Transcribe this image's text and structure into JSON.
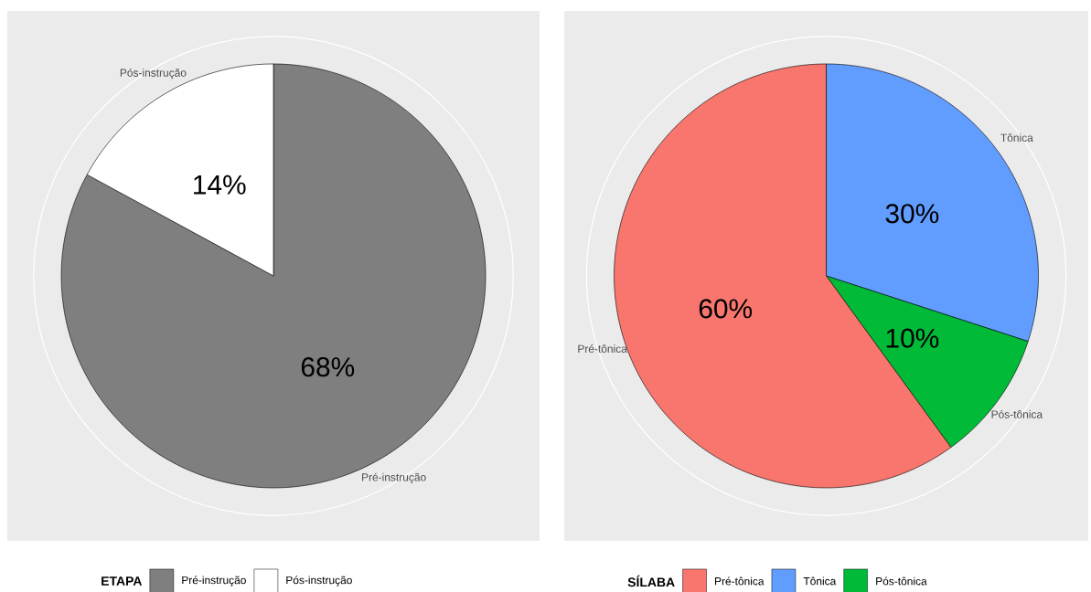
{
  "chart_data": [
    {
      "type": "pie",
      "categories": [
        "Pré-instrução",
        "Pós-instrução"
      ],
      "values": [
        68,
        14
      ],
      "colors": [
        "#7f7f7f",
        "#ffffff"
      ],
      "value_labels": [
        "68%",
        "14%"
      ],
      "legend_title": "ETAPA",
      "legend": "bottom",
      "grid": true
    },
    {
      "type": "pie",
      "categories": [
        "Tônica",
        "Pós-tônica",
        "Pré-tônica"
      ],
      "values": [
        30,
        10,
        60
      ],
      "colors": [
        "#619cff",
        "#00ba38",
        "#f8766d"
      ],
      "value_labels": [
        "30%",
        "10%",
        "60%"
      ],
      "legend_title": "SÍLABA",
      "legend": "bottom",
      "grid": true
    }
  ]
}
